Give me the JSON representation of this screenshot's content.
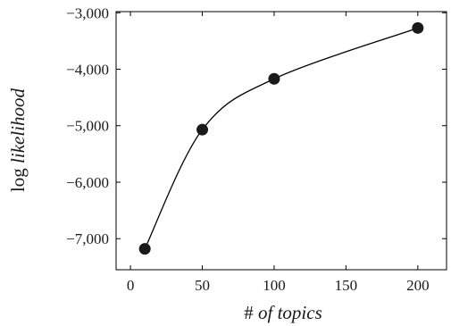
{
  "chart_data": {
    "type": "line",
    "title": "",
    "xlabel_plain": "#",
    "xlabel_italic": "of topics",
    "ylabel_plain": "log",
    "ylabel_italic": "likelihood",
    "xlim": [
      -10,
      220
    ],
    "ylim": [
      -7550,
      -2980
    ],
    "xticks": [
      0,
      50,
      100,
      150,
      200
    ],
    "xtick_labels": [
      "0",
      "50",
      "100",
      "150",
      "200"
    ],
    "yticks": [
      -7000,
      -6000,
      -5000,
      -4000,
      -3000
    ],
    "ytick_labels": [
      "−7,000",
      "−6,000",
      "−5,000",
      "−4,000",
      "−3,000"
    ],
    "grid": false,
    "smooth": true,
    "series": [
      {
        "x": [
          10,
          50,
          100,
          200
        ],
        "y": [
          -7180,
          -5070,
          -4170,
          -3270
        ]
      }
    ],
    "line_color": "#000000",
    "marker_color": "#1a1a1a"
  }
}
